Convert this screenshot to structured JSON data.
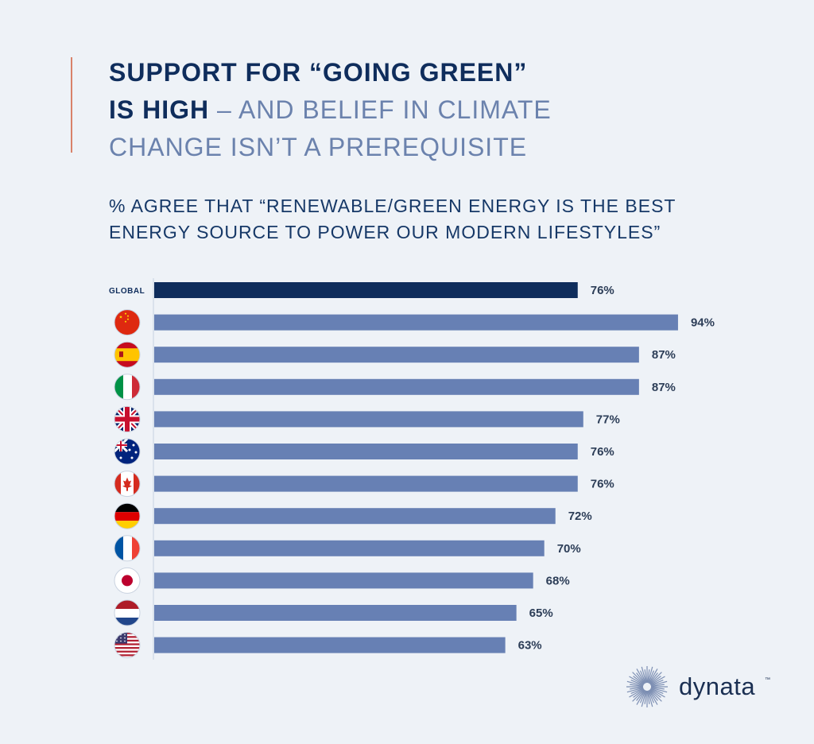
{
  "headline": {
    "line1": "SUPPORT FOR “GOING GREEN”",
    "line2_strong": "IS HIGH",
    "line2_light": " – AND BELIEF IN CLIMATE",
    "line3": "CHANGE ISN’T A PREREQUISITE"
  },
  "subtitle": {
    "line1": "% AGREE THAT “RENEWABLE/GREEN ENERGY IS THE BEST",
    "line2": "ENERGY SOURCE TO POWER OUR MODERN LIFESTYLES”"
  },
  "colors": {
    "global_bar": "#0f2d5c",
    "country_bar": "#6780b4",
    "accent": "#d9826a",
    "background": "#eef2f7"
  },
  "chart_data": {
    "type": "bar",
    "orientation": "horizontal",
    "categories": [
      "GLOBAL",
      "China",
      "Spain",
      "Italy",
      "United Kingdom",
      "Australia",
      "Canada",
      "Germany",
      "France",
      "Japan",
      "Netherlands",
      "United States"
    ],
    "category_display": [
      "GLOBAL",
      "china-flag-icon",
      "spain-flag-icon",
      "italy-flag-icon",
      "uk-flag-icon",
      "australia-flag-icon",
      "canada-flag-icon",
      "germany-flag-icon",
      "france-flag-icon",
      "japan-flag-icon",
      "netherlands-flag-icon",
      "usa-flag-icon"
    ],
    "values": [
      76,
      94,
      87,
      87,
      77,
      76,
      76,
      72,
      70,
      68,
      65,
      63
    ],
    "value_labels": [
      "76%",
      "94%",
      "87%",
      "87%",
      "77%",
      "76%",
      "76%",
      "72%",
      "70%",
      "68%",
      "65%",
      "63%"
    ],
    "unit": "%",
    "xlim": [
      0,
      100
    ],
    "grid": false,
    "legend": "none"
  },
  "brand": {
    "name": "dynata",
    "tm": "™"
  }
}
